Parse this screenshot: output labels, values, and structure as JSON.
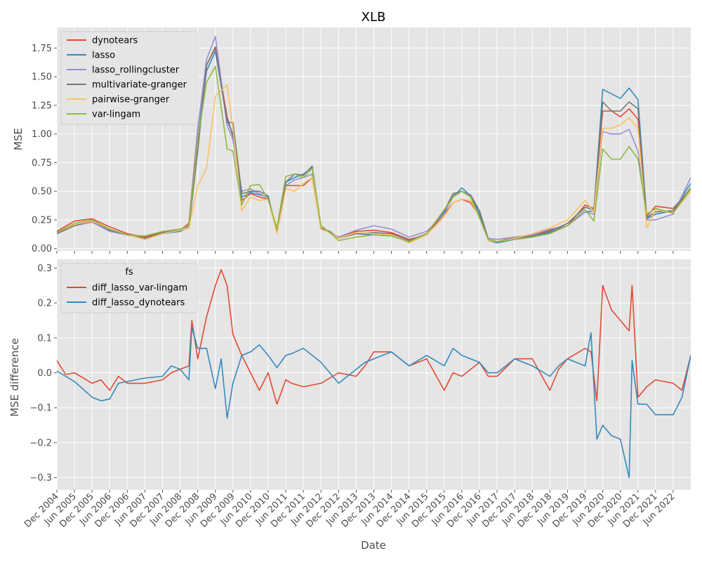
{
  "colors": {
    "red": "#e24a33",
    "blue": "#348abd",
    "purple": "#988ed5",
    "gray": "#777777",
    "orange": "#fbc15e",
    "green": "#8eba42"
  },
  "chart_data": [
    {
      "type": "line",
      "title": "XLB",
      "xlabel": "",
      "ylabel": "MSE",
      "ylim": [
        -0.02,
        1.93
      ],
      "xlim": [
        "2004-12",
        "2022-12"
      ],
      "yticks": [
        "0.00",
        "0.25",
        "0.50",
        "0.75",
        "1.00",
        "1.25",
        "1.50",
        "1.75"
      ],
      "grid": true,
      "legend_title": "",
      "legend_position": "upper-left",
      "x": [
        "2004-12",
        "2005-06",
        "2005-12",
        "2006-06",
        "2006-12",
        "2007-06",
        "2007-12",
        "2008-06",
        "2008-09",
        "2008-12",
        "2009-03",
        "2009-06",
        "2009-10",
        "2009-12",
        "2010-03",
        "2010-06",
        "2010-09",
        "2010-12",
        "2011-03",
        "2011-06",
        "2011-09",
        "2011-12",
        "2012-03",
        "2012-06",
        "2012-09",
        "2012-12",
        "2013-06",
        "2013-12",
        "2014-06",
        "2014-12",
        "2015-06",
        "2015-12",
        "2016-03",
        "2016-06",
        "2016-09",
        "2016-12",
        "2017-03",
        "2017-06",
        "2017-12",
        "2018-06",
        "2018-12",
        "2019-06",
        "2019-12",
        "2020-03",
        "2020-06",
        "2020-09",
        "2020-12",
        "2021-03",
        "2021-06",
        "2021-09",
        "2021-12",
        "2022-06",
        "2022-12"
      ],
      "series": [
        {
          "name": "dynotears",
          "color": "#e24a33",
          "values": [
            0.15,
            0.24,
            0.26,
            0.19,
            0.13,
            0.1,
            0.14,
            0.16,
            0.22,
            1.05,
            1.6,
            1.76,
            1.15,
            0.98,
            0.42,
            0.48,
            0.45,
            0.43,
            0.17,
            0.55,
            0.55,
            0.55,
            0.62,
            0.17,
            0.14,
            0.1,
            0.15,
            0.16,
            0.14,
            0.08,
            0.12,
            0.3,
            0.4,
            0.43,
            0.4,
            0.28,
            0.08,
            0.06,
            0.1,
            0.11,
            0.16,
            0.2,
            0.38,
            0.35,
            1.2,
            1.2,
            1.15,
            1.22,
            1.13,
            0.28,
            0.37,
            0.35,
            0.52
          ]
        },
        {
          "name": "lasso",
          "color": "#348abd",
          "values": [
            0.13,
            0.2,
            0.24,
            0.16,
            0.12,
            0.09,
            0.13,
            0.15,
            0.19,
            0.95,
            1.55,
            1.72,
            1.12,
            1.0,
            0.45,
            0.49,
            0.47,
            0.45,
            0.15,
            0.58,
            0.62,
            0.65,
            0.71,
            0.17,
            0.14,
            0.09,
            0.13,
            0.12,
            0.11,
            0.06,
            0.13,
            0.32,
            0.45,
            0.53,
            0.46,
            0.3,
            0.07,
            0.05,
            0.08,
            0.1,
            0.14,
            0.2,
            0.32,
            0.33,
            1.39,
            1.35,
            1.31,
            1.4,
            1.3,
            0.26,
            0.3,
            0.33,
            0.57
          ]
        },
        {
          "name": "lasso_rollingcluster",
          "color": "#988ed5",
          "values": [
            0.13,
            0.2,
            0.23,
            0.15,
            0.12,
            0.08,
            0.13,
            0.16,
            0.19,
            1.04,
            1.65,
            1.85,
            1.08,
            0.95,
            0.5,
            0.52,
            0.48,
            0.44,
            0.15,
            0.55,
            0.6,
            0.62,
            0.65,
            0.17,
            0.14,
            0.1,
            0.16,
            0.2,
            0.17,
            0.1,
            0.15,
            0.3,
            0.47,
            0.5,
            0.47,
            0.33,
            0.09,
            0.08,
            0.1,
            0.12,
            0.17,
            0.2,
            0.32,
            0.3,
            1.02,
            1.0,
            1.0,
            1.04,
            0.85,
            0.25,
            0.25,
            0.3,
            0.62
          ]
        },
        {
          "name": "multivariate-granger",
          "color": "#777777",
          "values": [
            0.13,
            0.2,
            0.24,
            0.16,
            0.12,
            0.09,
            0.14,
            0.16,
            0.18,
            0.85,
            1.6,
            1.75,
            1.1,
            1.1,
            0.48,
            0.5,
            0.5,
            0.46,
            0.14,
            0.58,
            0.65,
            0.64,
            0.72,
            0.18,
            0.15,
            0.09,
            0.13,
            0.14,
            0.13,
            0.07,
            0.13,
            0.33,
            0.48,
            0.5,
            0.46,
            0.33,
            0.08,
            0.06,
            0.09,
            0.11,
            0.15,
            0.22,
            0.36,
            0.34,
            1.28,
            1.2,
            1.2,
            1.28,
            1.22,
            0.27,
            0.32,
            0.33,
            0.53
          ]
        },
        {
          "name": "pairwise-granger",
          "color": "#fbc15e",
          "values": [
            0.14,
            0.21,
            0.24,
            0.17,
            0.12,
            0.08,
            0.13,
            0.16,
            0.18,
            0.55,
            0.7,
            1.33,
            1.43,
            1.05,
            0.33,
            0.45,
            0.42,
            0.43,
            0.13,
            0.52,
            0.5,
            0.57,
            0.62,
            0.17,
            0.14,
            0.09,
            0.14,
            0.13,
            0.12,
            0.05,
            0.12,
            0.28,
            0.4,
            0.43,
            0.42,
            0.27,
            0.07,
            0.06,
            0.09,
            0.13,
            0.18,
            0.25,
            0.42,
            0.32,
            1.05,
            1.05,
            1.08,
            1.14,
            1.05,
            0.18,
            0.34,
            0.31,
            0.5
          ]
        },
        {
          "name": "var-lingam",
          "color": "#8eba42",
          "values": [
            0.14,
            0.22,
            0.25,
            0.17,
            0.12,
            0.11,
            0.15,
            0.17,
            0.2,
            0.95,
            1.45,
            1.59,
            0.87,
            0.85,
            0.38,
            0.55,
            0.56,
            0.43,
            0.18,
            0.63,
            0.65,
            0.62,
            0.7,
            0.2,
            0.14,
            0.07,
            0.1,
            0.12,
            0.11,
            0.06,
            0.13,
            0.34,
            0.45,
            0.5,
            0.45,
            0.27,
            0.08,
            0.06,
            0.08,
            0.1,
            0.13,
            0.2,
            0.34,
            0.24,
            0.87,
            0.78,
            0.78,
            0.89,
            0.78,
            0.3,
            0.35,
            0.31,
            0.52
          ]
        }
      ]
    },
    {
      "type": "line",
      "title": "",
      "xlabel": "Date",
      "ylabel": "MSE difference",
      "ylim": [
        -0.335,
        0.325
      ],
      "xlim": [
        "2004-12",
        "2022-12"
      ],
      "yticks": [
        "−0.3",
        "−0.2",
        "−0.1",
        "0.0",
        "0.1",
        "0.2",
        "0.3"
      ],
      "xticks": [
        "Dec 2004",
        "Jun 2005",
        "Dec 2005",
        "Jun 2006",
        "Dec 2006",
        "Jun 2007",
        "Dec 2007",
        "Jun 2008",
        "Dec 2008",
        "Jun 2009",
        "Dec 2009",
        "Jun 2010",
        "Dec 2010",
        "Jun 2011",
        "Dec 2011",
        "Jun 2012",
        "Dec 2012",
        "Jun 2013",
        "Dec 2013",
        "Jun 2014",
        "Dec 2014",
        "Jun 2015",
        "Dec 2015",
        "Jun 2016",
        "Dec 2016",
        "Jun 2017",
        "Dec 2017",
        "Jun 2018",
        "Dec 2018",
        "Jun 2019",
        "Dec 2019",
        "Jun 2020",
        "Dec 2020",
        "Jun 2021",
        "Dec 2021",
        "Jun 2022"
      ],
      "grid": true,
      "legend_title": "fs",
      "legend_position": "upper-left",
      "x": [
        "2004-12",
        "2005-03",
        "2005-06",
        "2005-12",
        "2006-03",
        "2006-06",
        "2006-09",
        "2006-12",
        "2007-06",
        "2007-12",
        "2008-03",
        "2008-06",
        "2008-09",
        "2008-10",
        "2008-12",
        "2009-03",
        "2009-06",
        "2009-08",
        "2009-10",
        "2009-12",
        "2010-03",
        "2010-06",
        "2010-09",
        "2010-12",
        "2011-03",
        "2011-06",
        "2011-08",
        "2011-12",
        "2012-06",
        "2012-12",
        "2013-06",
        "2013-09",
        "2013-12",
        "2014-06",
        "2014-12",
        "2015-06",
        "2015-12",
        "2016-03",
        "2016-06",
        "2016-12",
        "2017-03",
        "2017-06",
        "2017-12",
        "2018-06",
        "2018-12",
        "2019-03",
        "2019-06",
        "2019-12",
        "2020-02",
        "2020-04",
        "2020-06",
        "2020-09",
        "2020-12",
        "2021-03",
        "2021-04",
        "2021-06",
        "2021-09",
        "2021-12",
        "2022-06",
        "2022-09",
        "2022-12"
      ],
      "series": [
        {
          "name": "diff_lasso_var-lingam",
          "color": "#e24a33",
          "values": [
            0.035,
            -0.005,
            0.0,
            -0.03,
            -0.02,
            -0.05,
            -0.01,
            -0.03,
            -0.03,
            -0.02,
            0.0,
            0.01,
            0.02,
            0.15,
            0.04,
            0.16,
            0.25,
            0.295,
            0.25,
            0.11,
            0.05,
            0.0,
            -0.05,
            0.0,
            -0.09,
            -0.02,
            -0.03,
            -0.04,
            -0.03,
            0.0,
            -0.01,
            0.02,
            0.06,
            0.06,
            0.02,
            0.04,
            -0.05,
            0.0,
            -0.01,
            0.03,
            -0.01,
            -0.01,
            0.04,
            0.04,
            -0.05,
            0.01,
            0.04,
            0.07,
            0.06,
            -0.08,
            0.25,
            0.18,
            0.15,
            0.12,
            0.25,
            -0.07,
            -0.04,
            -0.02,
            -0.03,
            -0.05,
            0.05
          ]
        },
        {
          "name": "diff_lasso_dynotears",
          "color": "#348abd",
          "values": [
            0.005,
            -0.01,
            -0.025,
            -0.07,
            -0.08,
            -0.075,
            -0.03,
            -0.025,
            -0.015,
            -0.01,
            0.02,
            0.01,
            -0.02,
            0.13,
            0.07,
            0.07,
            -0.045,
            0.04,
            -0.13,
            -0.03,
            0.05,
            0.06,
            0.08,
            0.05,
            0.015,
            0.05,
            0.055,
            0.07,
            0.03,
            -0.03,
            0.01,
            0.03,
            0.04,
            0.06,
            0.02,
            0.05,
            0.02,
            0.07,
            0.05,
            0.03,
            0.0,
            0.0,
            0.04,
            0.02,
            -0.01,
            0.02,
            0.04,
            0.02,
            0.115,
            -0.19,
            -0.15,
            -0.18,
            -0.19,
            -0.3,
            0.035,
            -0.09,
            -0.09,
            -0.12,
            -0.12,
            -0.07,
            0.05
          ]
        }
      ]
    }
  ]
}
